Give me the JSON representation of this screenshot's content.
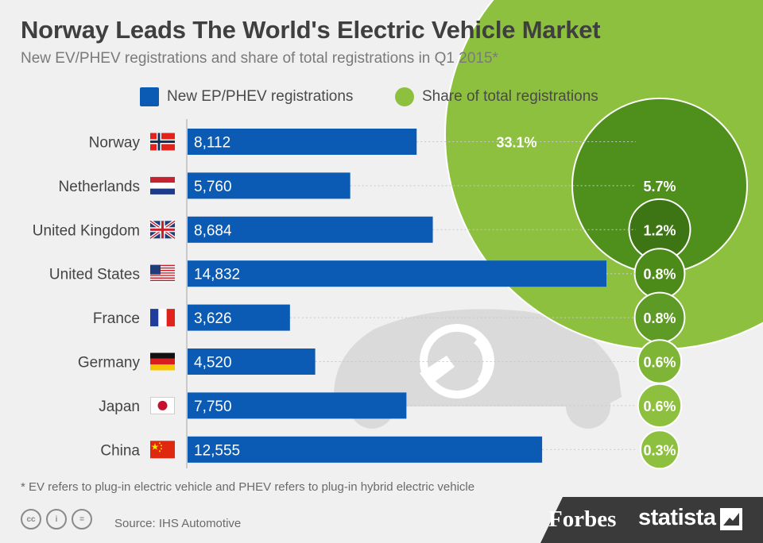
{
  "header": {
    "title": "Norway Leads The World's Electric Vehicle Market",
    "subtitle": "New EV/PHEV registrations and share of total registrations in Q1 2015*"
  },
  "legend": {
    "bars_label": "New EP/PHEV registrations",
    "bubbles_label": "Share of total registrations"
  },
  "chart_data": {
    "type": "bar",
    "categories": [
      "Norway",
      "Netherlands",
      "United Kingdom",
      "United States",
      "France",
      "Germany",
      "Japan",
      "China"
    ],
    "series": [
      {
        "name": "New EP/PHEV registrations",
        "values": [
          8112,
          5760,
          8684,
          14832,
          3626,
          4520,
          7750,
          12555
        ],
        "labels": [
          "8,112",
          "5,760",
          "8,684",
          "14,832",
          "3,626",
          "4,520",
          "7,750",
          "12,555"
        ],
        "color": "#0b5bb4"
      },
      {
        "name": "Share of total registrations",
        "values": [
          33.1,
          5.7,
          1.2,
          0.8,
          0.8,
          0.6,
          0.6,
          0.3
        ],
        "labels": [
          "33.1%",
          "5.7%",
          "1.2%",
          "0.8%",
          "0.8%",
          "0.6%",
          "0.6%",
          "0.3%"
        ],
        "unit": "%",
        "color": "#8ec03f"
      }
    ],
    "flags": [
      "norway-flag-icon",
      "netherlands-flag-icon",
      "uk-flag-icon",
      "us-flag-icon",
      "france-flag-icon",
      "germany-flag-icon",
      "japan-flag-icon",
      "china-flag-icon"
    ],
    "bar_xlim": [
      0,
      14832
    ],
    "grid": false,
    "legend_position": "top",
    "bubble_colors": [
      "#8ec03f",
      "#4f8f1c",
      "#3d7514",
      "#4c8a1a",
      "#5e9a26",
      "#7fb537",
      "#8ec03f",
      "#8ec03f"
    ]
  },
  "footer": {
    "footnote": "* EV refers to plug-in electric vehicle  and PHEV refers to plug-in hybrid electric vehicle",
    "source": "Source: IHS Automotive",
    "brand_forbes": "Forbes",
    "brand_statista": "statista",
    "cc_icons": [
      "cc-icon",
      "attribution-icon",
      "no-derivatives-icon"
    ],
    "cc_glyphs": [
      "cc",
      "i",
      "="
    ]
  },
  "colors": {
    "background": "#f0f0f0",
    "bar": "#0b5bb4",
    "bubble_light": "#8ec03f",
    "bubble_dark": "#3d7514",
    "car_silhouette": "#d9d9d9",
    "footer_band": "#3a3a3a"
  }
}
